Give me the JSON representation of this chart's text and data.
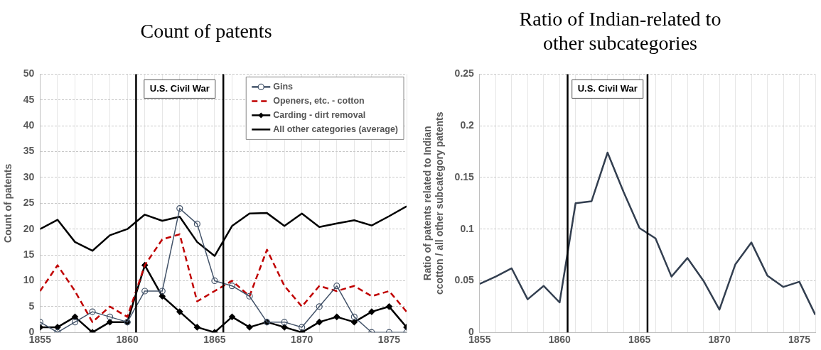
{
  "chart_data": [
    {
      "type": "line",
      "title": "Count of patents",
      "ylabel": "Count of patents",
      "x": [
        1855,
        1856,
        1857,
        1858,
        1859,
        1860,
        1861,
        1862,
        1863,
        1864,
        1865,
        1866,
        1867,
        1868,
        1869,
        1870,
        1871,
        1872,
        1873,
        1874,
        1875,
        1876
      ],
      "xlim": [
        1855,
        1876
      ],
      "xticks": [
        1855,
        {
          "value": 1856,
          "label": null
        },
        {
          "value": 1857,
          "label": null
        },
        {
          "value": 1858,
          "label": null
        },
        {
          "value": 1859,
          "label": null
        },
        1860,
        {
          "value": 1861,
          "label": null
        },
        {
          "value": 1862,
          "label": null
        },
        {
          "value": 1863,
          "label": null
        },
        {
          "value": 1864,
          "label": null
        },
        1865,
        {
          "value": 1866,
          "label": null
        },
        {
          "value": 1867,
          "label": null
        },
        {
          "value": 1868,
          "label": null
        },
        {
          "value": 1869,
          "label": null
        },
        1870,
        {
          "value": 1871,
          "label": null
        },
        {
          "value": 1872,
          "label": null
        },
        {
          "value": 1873,
          "label": null
        },
        {
          "value": 1874,
          "label": null
        },
        1875,
        {
          "value": 1876,
          "label": null
        }
      ],
      "ylim": [
        0,
        50
      ],
      "yticks": [
        0,
        5,
        10,
        15,
        20,
        25,
        30,
        35,
        40,
        45,
        50
      ],
      "grid": true,
      "legend": "top right",
      "annotations": [
        "U.S. Civil War"
      ],
      "ref_lines": [
        {
          "axis": "x",
          "value": 1860.5,
          "color": "#000000"
        },
        {
          "axis": "x",
          "value": 1865.5,
          "color": "#000000"
        }
      ],
      "series": [
        {
          "name": "Gins",
          "color": "#44546a",
          "marker": "circle",
          "line_style": "solid",
          "values": [
            2,
            0,
            2,
            4,
            3,
            2,
            8,
            8,
            24,
            21,
            10,
            9,
            7,
            2,
            2,
            1,
            5,
            9,
            3,
            0,
            0,
            0
          ]
        },
        {
          "name": "Openers, etc. - cotton",
          "color": "#c00000",
          "marker": "none",
          "line_style": "dashed",
          "values": [
            8,
            13,
            8,
            2,
            5,
            3,
            13,
            18,
            19,
            6,
            8,
            10,
            7,
            16,
            9,
            5,
            9,
            8,
            9,
            7,
            8,
            4
          ]
        },
        {
          "name": "Carding - dirt removal",
          "color": "#000000",
          "marker": "diamond",
          "line_style": "solid",
          "values": [
            1,
            1,
            3,
            0,
            2,
            2,
            13,
            7,
            4,
            1,
            0,
            3,
            1,
            2,
            1,
            0,
            2,
            3,
            2,
            4,
            5,
            1
          ]
        },
        {
          "name": "All other categories (average)",
          "color": "#000000",
          "marker": "none",
          "line_style": "solid",
          "values": [
            20,
            21.8,
            17.5,
            15.8,
            18.8,
            20,
            22.8,
            21.6,
            22.4,
            17.5,
            14.8,
            20.6,
            23,
            23.1,
            20.6,
            23,
            20.4,
            21.1,
            21.7,
            20.7,
            22.5,
            24.4
          ]
        }
      ]
    },
    {
      "type": "line",
      "title": "Ratio of Indian-related to other subcategories",
      "ylabel": "Ratio of patents related to Indian ccotton / all other subcategory patents",
      "x": [
        1855,
        1856,
        1857,
        1858,
        1859,
        1860,
        1861,
        1862,
        1863,
        1864,
        1865,
        1866,
        1867,
        1868,
        1869,
        1870,
        1871,
        1872,
        1873,
        1874,
        1875,
        1876
      ],
      "xlim": [
        1855,
        1876
      ],
      "xticks": [
        1855,
        {
          "value": 1856,
          "label": null
        },
        {
          "value": 1857,
          "label": null
        },
        {
          "value": 1858,
          "label": null
        },
        {
          "value": 1859,
          "label": null
        },
        1860,
        {
          "value": 1861,
          "label": null
        },
        {
          "value": 1862,
          "label": null
        },
        {
          "value": 1863,
          "label": null
        },
        {
          "value": 1864,
          "label": null
        },
        1865,
        {
          "value": 1866,
          "label": null
        },
        {
          "value": 1867,
          "label": null
        },
        {
          "value": 1868,
          "label": null
        },
        {
          "value": 1869,
          "label": null
        },
        1870,
        {
          "value": 1871,
          "label": null
        },
        {
          "value": 1872,
          "label": null
        },
        {
          "value": 1873,
          "label": null
        },
        {
          "value": 1874,
          "label": null
        },
        1875,
        {
          "value": 1876,
          "label": null
        }
      ],
      "ylim": [
        0,
        0.25
      ],
      "yticks": [
        0,
        0.05,
        0.1,
        0.15,
        0.2,
        0.25
      ],
      "grid": true,
      "marker": "none",
      "annotations": [
        "U.S. Civil War"
      ],
      "ref_lines": [
        {
          "axis": "x",
          "value": 1860.5,
          "color": "#000000"
        },
        {
          "axis": "x",
          "value": 1865.5,
          "color": "#000000"
        }
      ],
      "series": [
        {
          "color": "#333f50",
          "values": [
            0.047,
            0.054,
            0.062,
            0.032,
            0.045,
            0.029,
            0.125,
            0.127,
            0.174,
            0.136,
            0.101,
            0.091,
            0.054,
            0.072,
            0.05,
            0.022,
            0.066,
            0.087,
            0.055,
            0.044,
            0.049,
            0.017
          ]
        }
      ]
    }
  ]
}
